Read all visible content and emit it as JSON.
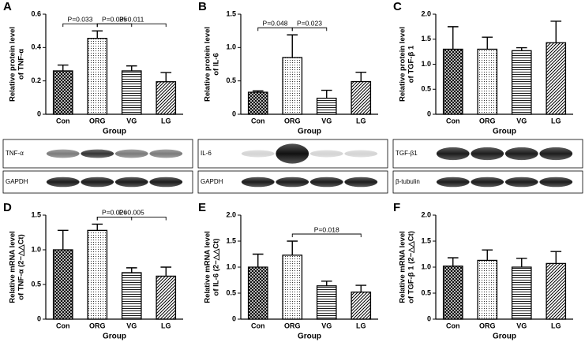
{
  "chart_data": [
    {
      "type": "bar",
      "panel": "A",
      "ylabel": [
        "Relative protein level",
        "of TNF-α"
      ],
      "xlabel": "Group",
      "categories": [
        "Con",
        "ORG",
        "VG",
        "LG"
      ],
      "values": [
        0.26,
        0.455,
        0.26,
        0.195
      ],
      "errors": [
        0.035,
        0.045,
        0.03,
        0.055
      ],
      "patterns": [
        "crosshatch",
        "dots",
        "horizontal-lines",
        "diagonal-lines"
      ],
      "ylim": [
        0,
        0.6
      ],
      "yticks": [
        0,
        0.2,
        0.4,
        0.6
      ],
      "annotations": [
        {
          "label": "P=0.033",
          "from": 0,
          "to": 1
        },
        {
          "label": "P=0.035",
          "from": 1,
          "to": 2
        },
        {
          "label": "P=0.011",
          "from": 1,
          "to": 3
        }
      ],
      "blots": [
        "TNF-α",
        "GAPDH"
      ]
    },
    {
      "type": "bar",
      "panel": "B",
      "ylabel": [
        "Relative protein level",
        "of IL-6"
      ],
      "xlabel": "Group",
      "categories": [
        "Con",
        "ORG",
        "VG",
        "LG"
      ],
      "values": [
        0.33,
        0.85,
        0.24,
        0.49
      ],
      "errors": [
        0.02,
        0.34,
        0.12,
        0.14
      ],
      "patterns": [
        "crosshatch",
        "dots",
        "horizontal-lines",
        "diagonal-lines"
      ],
      "ylim": [
        0,
        1.5
      ],
      "yticks": [
        0,
        0.5,
        {
          "value": 1,
          "label": "1.0"
        },
        1.5
      ],
      "annotations": [
        {
          "label": "P=0.048",
          "from": 0,
          "to": 1
        },
        {
          "label": "P=0.023",
          "from": 1,
          "to": 2
        }
      ],
      "blots": [
        "IL-6",
        "GAPDH"
      ]
    },
    {
      "type": "bar",
      "panel": "C",
      "ylabel": [
        "Relative protein level",
        "of TGF-β 1"
      ],
      "xlabel": "Group",
      "categories": [
        "Con",
        "ORG",
        "VG",
        "LG"
      ],
      "values": [
        1.3,
        1.3,
        1.27,
        1.43
      ],
      "errors": [
        0.45,
        0.24,
        0.06,
        0.43
      ],
      "patterns": [
        "crosshatch",
        "dots",
        "horizontal-lines",
        "diagonal-lines"
      ],
      "ylim": [
        0,
        2
      ],
      "yticks": [
        0,
        0.5,
        {
          "value": 1,
          "label": "1.0"
        },
        1.5,
        {
          "value": 2,
          "label": "2.0"
        }
      ],
      "annotations": [],
      "blots": [
        "TGF-β1",
        "β-tubulin"
      ]
    },
    {
      "type": "bar",
      "panel": "D",
      "ylabel": [
        "Relative mRNA level",
        "of TNF-α (2−△△Ct)"
      ],
      "xlabel": "Group",
      "categories": [
        "Con",
        "ORG",
        "VG",
        "LG"
      ],
      "values": [
        1.0,
        1.28,
        0.67,
        0.62
      ],
      "errors": [
        0.28,
        0.09,
        0.07,
        0.13
      ],
      "patterns": [
        "crosshatch",
        "dots",
        "horizontal-lines",
        "diagonal-lines"
      ],
      "ylim": [
        0,
        1.5
      ],
      "yticks": [
        0,
        0.5,
        {
          "value": 1,
          "label": "1.0"
        },
        1.5
      ],
      "annotations": [
        {
          "label": "P=0.026",
          "from": 1,
          "to": 2
        },
        {
          "label": "P=0.005",
          "from": 1,
          "to": 3
        }
      ]
    },
    {
      "type": "bar",
      "panel": "E",
      "ylabel": [
        "Relative mRNA level",
        "of IL-6 (2−△△Ct)"
      ],
      "xlabel": "Group",
      "categories": [
        "Con",
        "ORG",
        "VG",
        "LG"
      ],
      "values": [
        1.0,
        1.23,
        0.64,
        0.52
      ],
      "errors": [
        0.25,
        0.27,
        0.09,
        0.13
      ],
      "patterns": [
        "crosshatch",
        "dots",
        "horizontal-lines",
        "diagonal-lines"
      ],
      "ylim": [
        0,
        2
      ],
      "yticks": [
        0,
        0.5,
        {
          "value": 1,
          "label": "1.0"
        },
        1.5,
        {
          "value": 2,
          "label": "2.0"
        }
      ],
      "annotations": [
        {
          "label": "P=0.018",
          "from": 1,
          "to": 3
        }
      ]
    },
    {
      "type": "bar",
      "panel": "F",
      "ylabel": [
        "Relative mRNA level",
        "of TGF-β 1 (2−△△Ct)"
      ],
      "xlabel": "Group",
      "categories": [
        "Con",
        "ORG",
        "VG",
        "LG"
      ],
      "values": [
        1.02,
        1.13,
        1.0,
        1.07
      ],
      "errors": [
        0.16,
        0.2,
        0.17,
        0.23
      ],
      "patterns": [
        "crosshatch",
        "dots",
        "horizontal-lines",
        "diagonal-lines"
      ],
      "ylim": [
        0,
        2
      ],
      "yticks": [
        0,
        0.5,
        {
          "value": 1,
          "label": "1.0"
        },
        1.5,
        {
          "value": 2,
          "label": "2.0"
        }
      ],
      "annotations": []
    }
  ]
}
